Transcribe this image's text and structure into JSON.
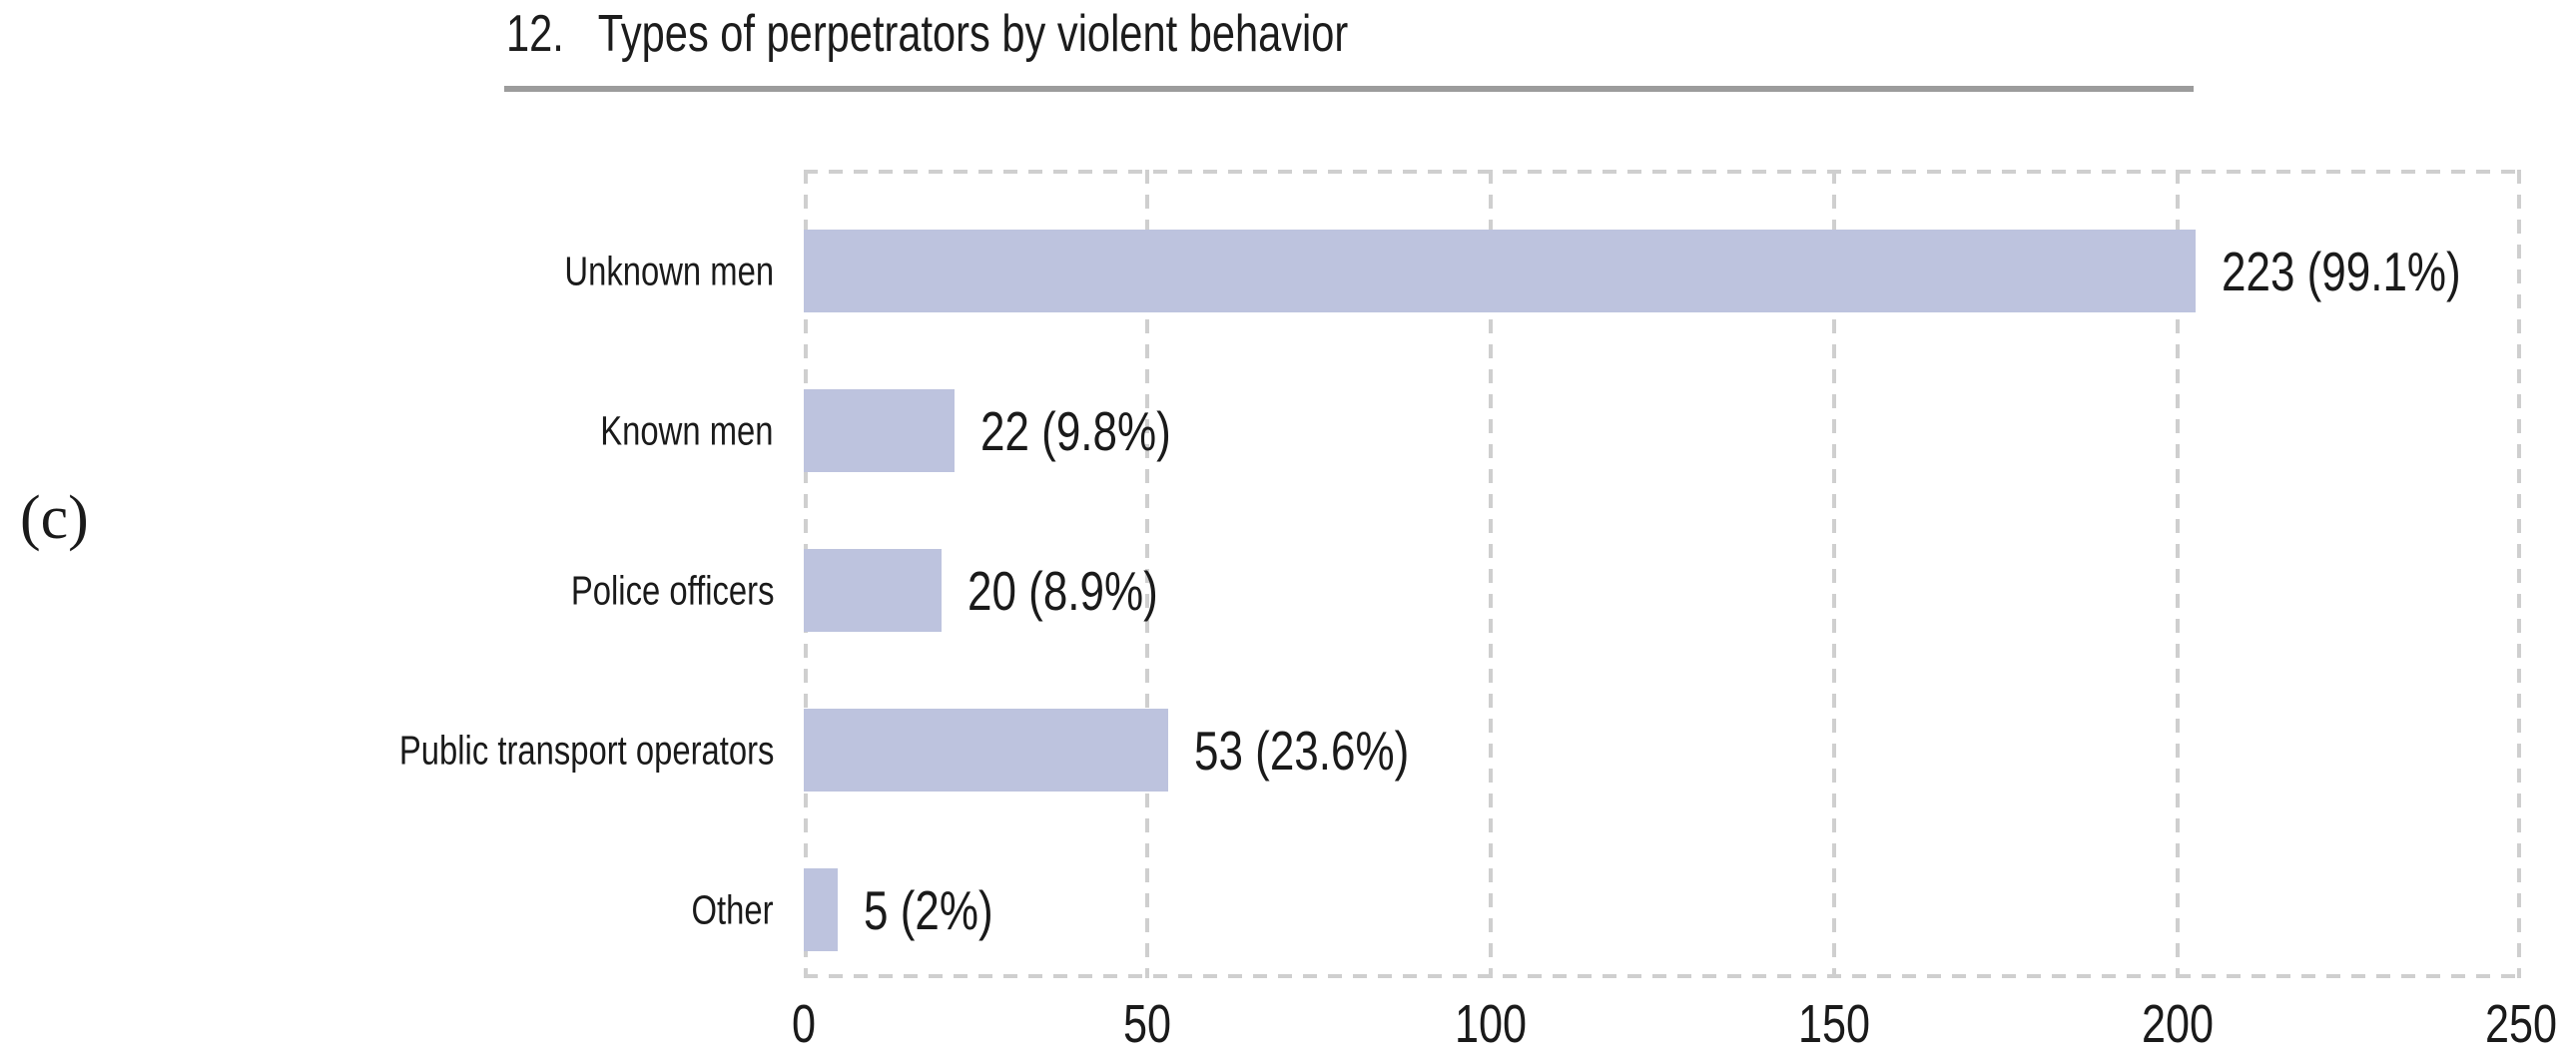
{
  "figure_label": "(c)",
  "chart_data": {
    "type": "bar",
    "orientation": "horizontal",
    "title": "12.   Types of perpetrators by violent behavior",
    "categories": [
      "Unknown men",
      "Known men",
      "Police officers",
      "Public transport operators",
      "Other"
    ],
    "values": [
      223,
      22,
      20,
      53,
      5
    ],
    "bar_labels": [
      "223 (99.1%)",
      "22 (9.8%)",
      "20 (8.9%)",
      "53 (23.6%)",
      "5 (2%)"
    ],
    "x_tick_labels": [
      "0",
      "50",
      "100",
      "150",
      "200",
      "250"
    ],
    "xlim": [
      0,
      250
    ],
    "xlabel": "",
    "ylabel": "",
    "legend": "none",
    "grid": "vertical dashed gridlines at each x tick",
    "bar_color": "#bdc3de",
    "grid_color": "#cfcfcf",
    "underline_color": "#9c9c9c",
    "text_color": "#1a1a1a"
  }
}
